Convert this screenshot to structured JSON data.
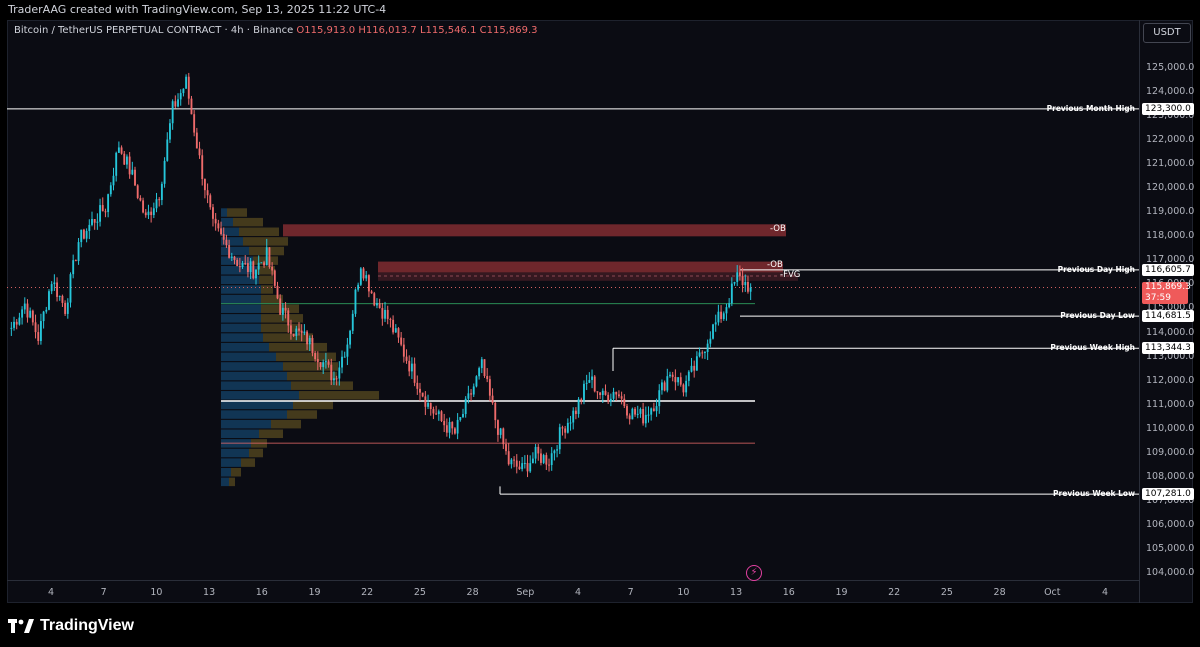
{
  "header": {
    "creator_line": "TraderAAG created with TradingView.com, Sep 13, 2025 11:22 UTC-4"
  },
  "symbol": {
    "name": "Bitcoin / TetherUS PERPETUAL CONTRACT · 4h · Binance",
    "open": "O115,913.0",
    "high": "H116,013.7",
    "low": "L115,546.1",
    "close": "C115,869.3"
  },
  "currency_button": "USDT",
  "price_axis": {
    "ticks": [
      "125,000.0",
      "124,000.0",
      "123,000.0",
      "122,000.0",
      "121,000.0",
      "120,000.0",
      "119,000.0",
      "118,000.0",
      "117,000.0",
      "116,000.0",
      "115,000.0",
      "114,000.0",
      "113,000.0",
      "112,000.0",
      "111,000.0",
      "110,000.0",
      "109,000.0",
      "108,000.0",
      "107,000.0",
      "106,000.0",
      "105,000.0",
      "104,000.0"
    ],
    "range": [
      103400,
      126400
    ]
  },
  "time_axis": {
    "ticks": [
      "4",
      "7",
      "10",
      "13",
      "16",
      "19",
      "22",
      "25",
      "28",
      "Sep",
      "4",
      "7",
      "10",
      "13",
      "16",
      "19",
      "22",
      "25",
      "28",
      "Oct",
      "4"
    ]
  },
  "levels": [
    {
      "label": "Previous Month High",
      "price": "123,300.0",
      "value": 123300
    },
    {
      "label": "Previous Day High",
      "price": "116,605.7",
      "value": 116605.7
    },
    {
      "label": "Previous Day Low",
      "price": "114,681.5",
      "value": 114681.5
    },
    {
      "label": "Previous Week High",
      "price": "113,344.3",
      "value": 113344.3
    },
    {
      "label": "Previous Week Low",
      "price": "107,281.0",
      "value": 107281
    }
  ],
  "zones": [
    {
      "label": "-OB",
      "top": 118500,
      "bottom": 118000
    },
    {
      "label": "-OB",
      "top": 116950,
      "bottom": 116500
    },
    {
      "label": "-FVG",
      "top": 116500,
      "bottom": 116150
    }
  ],
  "current_price": {
    "price": "115,869.3",
    "countdown": "37:59",
    "value": 115869.3
  },
  "footer": {
    "brand": "TradingView"
  },
  "colors": {
    "up": "#26c6da",
    "down": "#ef6b6b",
    "zone": "#7a2a30",
    "volume_profile_blue": "#123a5c",
    "volume_profile_gold": "#4a3f1e"
  },
  "chart_data": {
    "type": "candlestick",
    "timeframe": "4h",
    "approximate_closes": [
      114200,
      115200,
      113800,
      116200,
      115000,
      117800,
      118600,
      119200,
      121800,
      120500,
      118700,
      119800,
      123300,
      124400,
      121200,
      118400,
      117600,
      116800,
      116600,
      117200,
      115000,
      114100,
      113700,
      112900,
      112100,
      113600,
      116900,
      115400,
      114600,
      113400,
      112200,
      111000,
      110300,
      109800,
      111200,
      112600,
      110400,
      108600,
      108300,
      108900,
      108700,
      110000,
      110800,
      112100,
      111300,
      111600,
      110700,
      110500,
      111200,
      112400,
      111700,
      112700,
      114000,
      114900,
      116300,
      115869
    ]
  }
}
